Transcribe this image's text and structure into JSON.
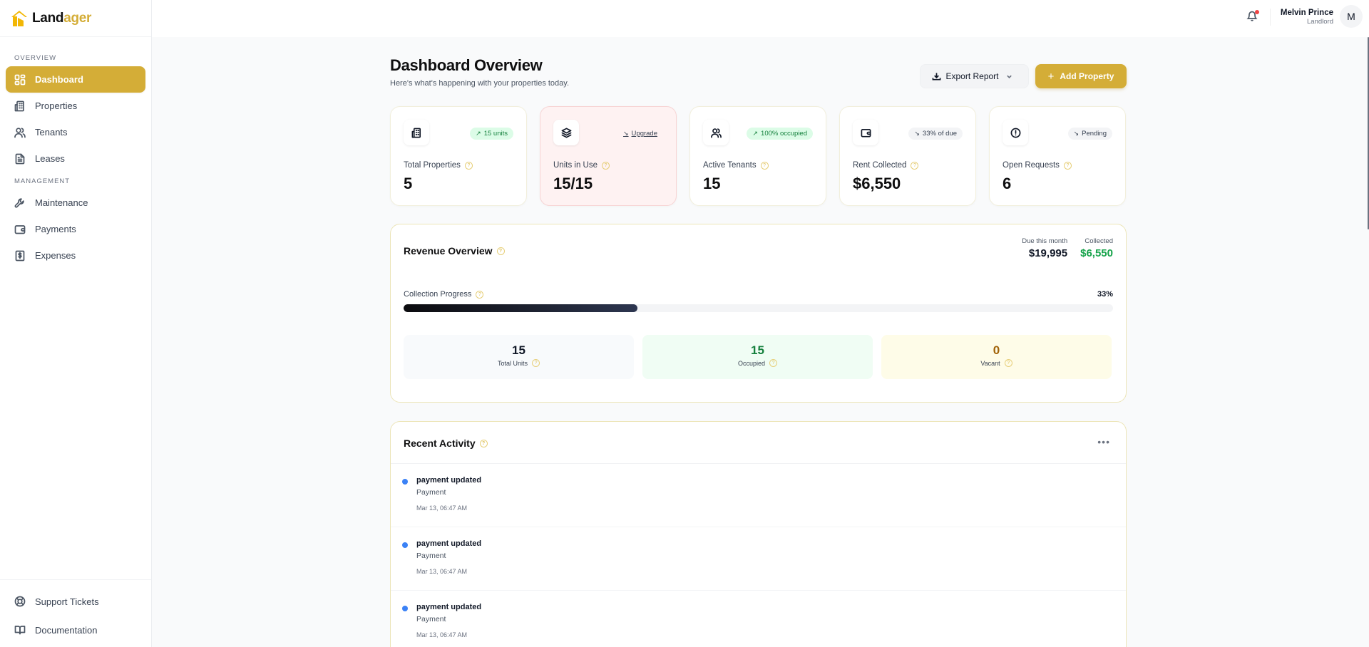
{
  "brand": {
    "name_part1": "Land",
    "name_part2": "ager",
    "accent_color": "#d4ad37"
  },
  "sidebar": {
    "sections": [
      {
        "label": "OVERVIEW"
      },
      {
        "label": "MANAGEMENT"
      }
    ],
    "items": [
      {
        "label": "Dashboard",
        "icon": "layout-grid-icon",
        "active": true
      },
      {
        "label": "Properties",
        "icon": "building-icon"
      },
      {
        "label": "Tenants",
        "icon": "users-icon"
      },
      {
        "label": "Leases",
        "icon": "file-text-icon"
      },
      {
        "label": "Maintenance",
        "icon": "wrench-icon"
      },
      {
        "label": "Payments",
        "icon": "wallet-icon"
      },
      {
        "label": "Expenses",
        "icon": "receipt-dollar-icon"
      }
    ],
    "bottom_items": [
      {
        "label": "Support Tickets",
        "icon": "lifebuoy-icon"
      },
      {
        "label": "Documentation",
        "icon": "book-open-icon"
      }
    ]
  },
  "topbar": {
    "notification_dot": true,
    "user": {
      "name": "Melvin Prince",
      "role": "Landlord",
      "initial": "M"
    }
  },
  "header": {
    "title": "Dashboard Overview",
    "subtitle": "Here's what's happening with your properties today.",
    "export_label": "Export Report",
    "add_label": "Add Property"
  },
  "stats": [
    {
      "label": "Total Properties",
      "value": "5",
      "badge": "15 units",
      "badge_style": "green",
      "icon": "building-icon"
    },
    {
      "label": "Units in Use",
      "value": "15/15",
      "badge": "Upgrade",
      "badge_style": "link",
      "icon": "layers-icon"
    },
    {
      "label": "Active Tenants",
      "value": "15",
      "badge": "100% occupied",
      "badge_style": "green",
      "icon": "users-icon"
    },
    {
      "label": "Rent Collected",
      "value": "$6,550",
      "badge": "33% of due",
      "badge_style": "gray",
      "icon": "wallet-icon"
    },
    {
      "label": "Open Requests",
      "value": "6",
      "badge": "Pending",
      "badge_style": "gray",
      "icon": "alert-circle-icon"
    }
  ],
  "revenue": {
    "title": "Revenue Overview",
    "due_label": "Due this month",
    "due_value": "$19,995",
    "collected_label": "Collected",
    "collected_value": "$6,550",
    "progress_label": "Collection Progress",
    "progress_pct": "33%",
    "progress_value": 33,
    "units": [
      {
        "value": "15",
        "label": "Total Units"
      },
      {
        "value": "15",
        "label": "Occupied"
      },
      {
        "value": "0",
        "label": "Vacant"
      }
    ]
  },
  "activity": {
    "title": "Recent Activity",
    "more_label": "•••",
    "items": [
      {
        "title": "payment updated",
        "type": "Payment",
        "time": "Mar 13, 06:47 AM"
      },
      {
        "title": "payment updated",
        "type": "Payment",
        "time": "Mar 13, 06:47 AM"
      },
      {
        "title": "payment updated",
        "type": "Payment",
        "time": "Mar 13, 06:47 AM"
      }
    ]
  },
  "help_glyph": "?"
}
